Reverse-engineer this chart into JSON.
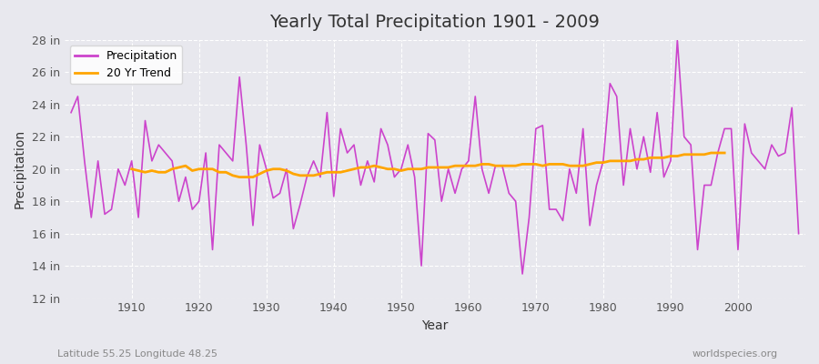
{
  "title": "Yearly Total Precipitation 1901 - 2009",
  "xlabel": "Year",
  "ylabel": "Precipitation",
  "bottom_left_text": "Latitude 55.25 Longitude 48.25",
  "bottom_right_text": "worldspecies.org",
  "precip_color": "#cc44cc",
  "trend_color": "#ffa500",
  "bg_color": "#e8e8ee",
  "plot_bg_color": "#e8e8ee",
  "ylim": [
    12,
    28
  ],
  "yticks": [
    12,
    14,
    16,
    18,
    20,
    22,
    24,
    26,
    28
  ],
  "ytick_labels": [
    "12 in",
    "14 in",
    "16 in",
    "18 in",
    "20 in",
    "22 in",
    "24 in",
    "26 in",
    "28 in"
  ],
  "years": [
    1901,
    1902,
    1903,
    1904,
    1905,
    1906,
    1907,
    1908,
    1909,
    1910,
    1911,
    1912,
    1913,
    1914,
    1915,
    1916,
    1917,
    1918,
    1919,
    1920,
    1921,
    1922,
    1923,
    1924,
    1925,
    1926,
    1927,
    1928,
    1929,
    1930,
    1931,
    1932,
    1933,
    1934,
    1935,
    1936,
    1937,
    1938,
    1939,
    1940,
    1941,
    1942,
    1943,
    1944,
    1945,
    1946,
    1947,
    1948,
    1949,
    1950,
    1951,
    1952,
    1953,
    1954,
    1955,
    1956,
    1957,
    1958,
    1959,
    1960,
    1961,
    1962,
    1963,
    1964,
    1965,
    1966,
    1967,
    1968,
    1969,
    1970,
    1971,
    1972,
    1973,
    1974,
    1975,
    1976,
    1977,
    1978,
    1979,
    1980,
    1981,
    1982,
    1983,
    1984,
    1985,
    1986,
    1987,
    1988,
    1989,
    1990,
    1991,
    1992,
    1993,
    1994,
    1995,
    1996,
    1997,
    1998,
    1999,
    2000,
    2001,
    2002,
    2003,
    2004,
    2005,
    2006,
    2007,
    2008,
    2009
  ],
  "precip": [
    23.5,
    24.5,
    20.5,
    17.0,
    20.5,
    17.2,
    17.5,
    20.0,
    19.0,
    20.5,
    17.0,
    23.0,
    20.5,
    21.5,
    21.0,
    20.5,
    18.0,
    19.5,
    17.5,
    18.0,
    21.0,
    15.0,
    21.5,
    21.0,
    20.5,
    25.7,
    21.5,
    16.5,
    21.5,
    20.0,
    18.2,
    18.5,
    20.0,
    16.3,
    17.8,
    19.5,
    20.5,
    19.5,
    23.5,
    18.3,
    22.5,
    21.0,
    21.5,
    19.0,
    20.5,
    19.2,
    22.5,
    21.5,
    19.5,
    20.0,
    21.5,
    19.5,
    14.0,
    22.2,
    21.8,
    18.0,
    20.0,
    18.5,
    20.0,
    20.5,
    24.5,
    20.0,
    18.5,
    20.2,
    20.2,
    18.5,
    18.0,
    13.5,
    17.0,
    22.5,
    22.7,
    17.5,
    17.5,
    16.8,
    20.0,
    18.5,
    22.5,
    16.5,
    19.0,
    20.5,
    25.3,
    24.5,
    19.0,
    22.5,
    20.0,
    22.0,
    19.8,
    23.5,
    19.5,
    20.5,
    28.0,
    22.0,
    21.5,
    15.0,
    19.0,
    19.0,
    21.0,
    22.5,
    22.5,
    15.0,
    22.8,
    21.0,
    20.5,
    20.0,
    21.5,
    20.8,
    21.0,
    23.8,
    16.0
  ],
  "trend_years": [
    1910,
    1911,
    1912,
    1913,
    1914,
    1915,
    1916,
    1917,
    1918,
    1919,
    1920,
    1921,
    1922,
    1923,
    1924,
    1925,
    1926,
    1927,
    1928,
    1929,
    1930,
    1931,
    1932,
    1933,
    1934,
    1935,
    1936,
    1937,
    1938,
    1939,
    1940,
    1941,
    1942,
    1943,
    1944,
    1945,
    1946,
    1947,
    1948,
    1949,
    1950,
    1951,
    1952,
    1953,
    1954,
    1955,
    1956,
    1957,
    1958,
    1959,
    1960,
    1961,
    1962,
    1963,
    1964,
    1965,
    1966,
    1967,
    1968,
    1969,
    1970,
    1971,
    1972,
    1973,
    1974,
    1975,
    1976,
    1977,
    1978,
    1979,
    1980,
    1981,
    1982,
    1983,
    1984,
    1985,
    1986,
    1987,
    1988,
    1989,
    1990,
    1991,
    1992,
    1993,
    1994,
    1995,
    1996,
    1997,
    1998
  ],
  "trend": [
    20.0,
    19.9,
    19.8,
    19.9,
    19.8,
    19.8,
    20.0,
    20.1,
    20.2,
    19.9,
    20.0,
    20.0,
    20.0,
    19.8,
    19.8,
    19.6,
    19.5,
    19.5,
    19.5,
    19.7,
    19.9,
    20.0,
    20.0,
    19.9,
    19.7,
    19.6,
    19.6,
    19.6,
    19.7,
    19.8,
    19.8,
    19.8,
    19.9,
    20.0,
    20.1,
    20.1,
    20.2,
    20.1,
    20.0,
    20.0,
    19.9,
    20.0,
    20.0,
    20.0,
    20.1,
    20.1,
    20.1,
    20.1,
    20.2,
    20.2,
    20.2,
    20.2,
    20.3,
    20.3,
    20.2,
    20.2,
    20.2,
    20.2,
    20.3,
    20.3,
    20.3,
    20.2,
    20.3,
    20.3,
    20.3,
    20.2,
    20.2,
    20.2,
    20.3,
    20.4,
    20.4,
    20.5,
    20.5,
    20.5,
    20.5,
    20.6,
    20.6,
    20.7,
    20.7,
    20.7,
    20.8,
    20.8,
    20.9,
    20.9,
    20.9,
    20.9,
    21.0,
    21.0,
    21.0
  ]
}
